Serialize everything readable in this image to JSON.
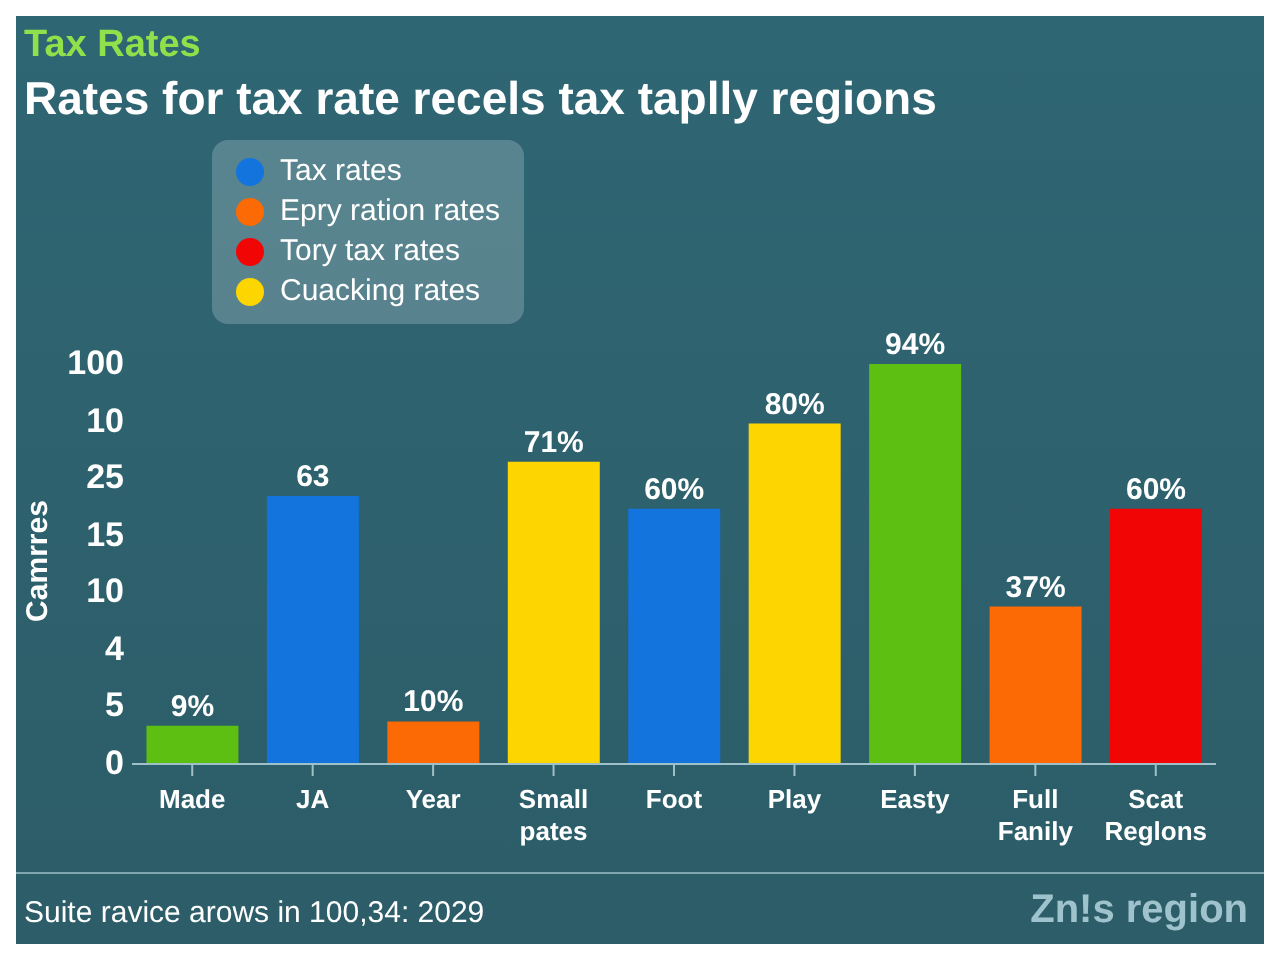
{
  "chart_data": {
    "type": "bar",
    "subtitle": "Tax Rates",
    "title": "Rates for tax rate recels tax taplly regions",
    "ylabel": "Camrres",
    "categories": [
      "Made",
      "JA",
      "Year",
      "Small pates",
      "Foot",
      "Play",
      "Easty",
      "Full Fanily",
      "Scat Reglons"
    ],
    "stacked": true,
    "legend": "top left",
    "series": [
      {
        "name": "Tax rates",
        "color": "#1274dc",
        "values": [
          null,
          63,
          null,
          null,
          60,
          null,
          null,
          null,
          null
        ],
        "value_labels": [
          null,
          "63",
          null,
          null,
          "60%",
          null,
          null,
          null,
          null
        ]
      },
      {
        "name": "Epry ration rates",
        "color": "#fb6a05",
        "values": [
          null,
          null,
          10,
          null,
          null,
          null,
          null,
          37,
          null
        ],
        "value_labels": [
          null,
          null,
          "10%",
          null,
          null,
          null,
          null,
          "37%",
          null
        ]
      },
      {
        "name": "Tory tax rates",
        "color": "#f20505",
        "values": [
          null,
          null,
          null,
          null,
          null,
          null,
          null,
          null,
          60
        ],
        "value_labels": [
          null,
          null,
          null,
          null,
          null,
          null,
          null,
          null,
          "60%"
        ]
      },
      {
        "name": "Cuacking rates",
        "color": "#fdd500",
        "values": [
          null,
          null,
          null,
          71,
          null,
          80,
          null,
          null,
          null
        ],
        "value_labels": [
          null,
          null,
          null,
          "71%",
          null,
          "80%",
          null,
          null,
          null
        ]
      },
      {
        "color": "#5cbf12",
        "values": [
          9,
          null,
          null,
          null,
          null,
          null,
          94,
          null,
          null
        ],
        "value_labels": [
          "9%",
          null,
          null,
          null,
          null,
          null,
          "94%",
          null,
          null
        ]
      }
    ],
    "annotations": [
      "100",
      "10",
      "25",
      "15",
      "10",
      "4",
      "5",
      "0",
      "Suite ravice arows in 100,34: 2029",
      "Zn!s region"
    ]
  }
}
